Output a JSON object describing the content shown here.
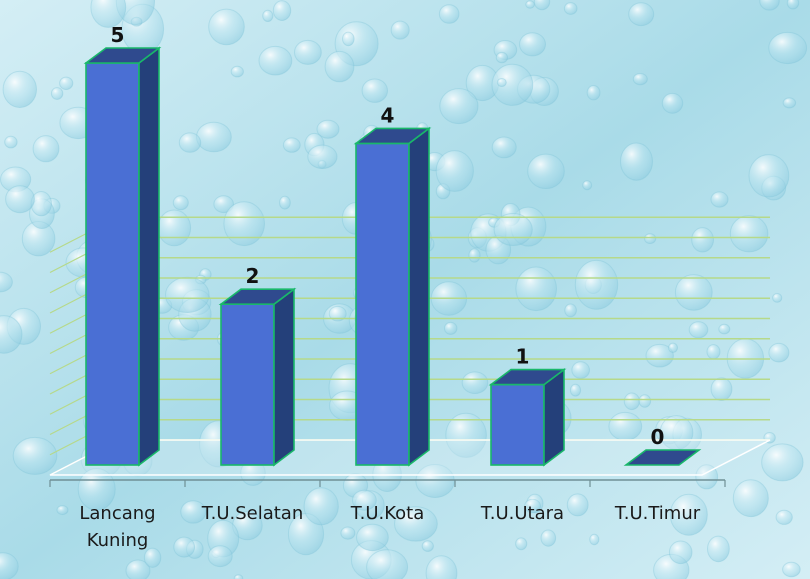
{
  "chart_data": {
    "type": "bar",
    "categories": [
      "Lancang Kuning",
      "T.U.Selatan",
      "T.U.Kota",
      "T.U.Utara",
      "T.U.Timur"
    ],
    "category_lines": [
      [
        "Lancang",
        "Kuning"
      ],
      [
        "T.U.Selatan"
      ],
      [
        "T.U.Kota"
      ],
      [
        "T.U.Utara"
      ],
      [
        "T.U.Timur"
      ]
    ],
    "values": [
      5,
      2,
      4,
      1,
      0
    ],
    "value_labels": [
      "5",
      "2",
      "4",
      "1",
      "0"
    ],
    "ylim": [
      0,
      5
    ],
    "grid": true,
    "title": "",
    "xlabel": "",
    "ylabel": ""
  },
  "colors": {
    "bar_front": "#4a6fd4",
    "bar_side": "#24407a",
    "bar_top": "#2f4a8e",
    "bar_edge": "#19b86a",
    "gridline": "#b6d98a",
    "background_light": "#d4eef5",
    "background_dark": "#8ccbdf"
  }
}
